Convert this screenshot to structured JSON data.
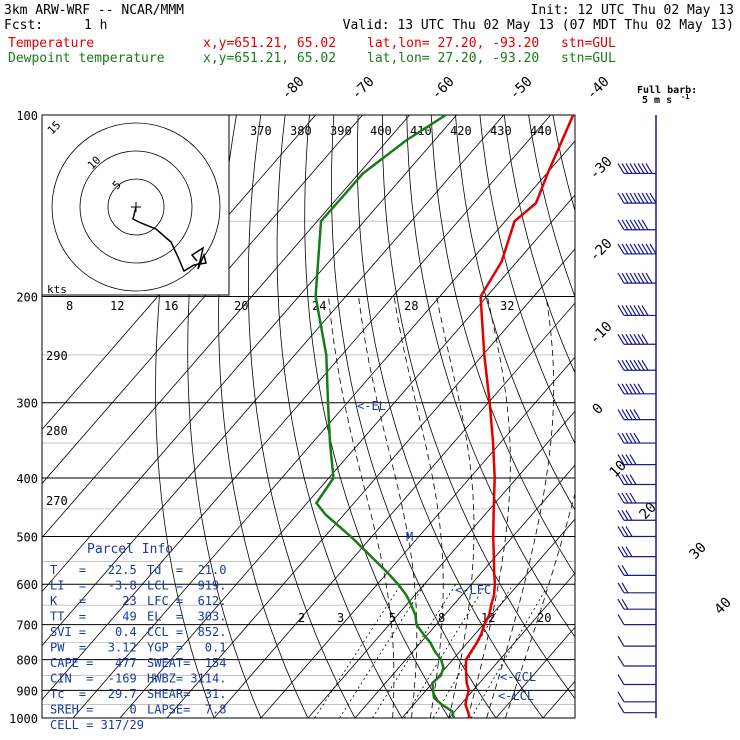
{
  "header": {
    "model": "3km ARW-WRF -- NCAR/MMM",
    "init": "Init: 12 UTC Thu 02 May 13",
    "fcst_label": "Fcst:",
    "fcst_value": "1 h",
    "valid": "Valid: 13 UTC Thu 02 May 13 (07 MDT Thu 02 May 13)",
    "temp_line": {
      "name": "Temperature",
      "xy": "x,y=651.21, 65.02",
      "latlon": "lat,lon= 27.20, -93.20",
      "stn": "stn=GUL"
    },
    "dew_line": {
      "name": "Dewpoint temperature",
      "xy": "x,y=651.21, 65.02",
      "latlon": "lat,lon= 27.20, -93.20",
      "stn": "stn=GUL"
    }
  },
  "colors": {
    "temperature": "#e00000",
    "dewpoint": "#1a7a1a",
    "parcel_text": "#1a3a9c",
    "barbs": "#1a1a8c"
  },
  "parcel_info": {
    "title": "Parcel Info",
    "rows": [
      [
        "T   =   22.5",
        "Td  =  21.0"
      ],
      [
        "LI  =   -3.8",
        "LCL =  919."
      ],
      [
        "K   =     23",
        "LFC =  612."
      ],
      [
        "TT  =     49",
        "EL  =  303."
      ],
      [
        "SVI =    0.4",
        "CCL =  852."
      ],
      [
        "PW  =   3.12",
        "YGP =   0.1"
      ],
      [
        "CAPE =   477",
        "SWEAT=  154"
      ],
      [
        "CIN  =  -169",
        "HWBZ= 3114."
      ],
      [
        "Tc  =   29.7",
        "SHEAR=  31."
      ],
      [
        "SREH =     0",
        "LAPSE=  7.8"
      ],
      [
        "CELL = 317/29",
        ""
      ]
    ]
  },
  "hodograph": {
    "ring_labels": [
      "5",
      "10",
      "15"
    ],
    "units_label": "kts",
    "points": [
      [
        0,
        0
      ],
      [
        -0.3,
        -1.2
      ],
      [
        0.5,
        -1.6
      ],
      [
        2.0,
        -2.2
      ],
      [
        3.5,
        -3.5
      ],
      [
        4.2,
        -5.0
      ],
      [
        4.8,
        -6.4
      ],
      [
        5.8,
        -5.8
      ],
      [
        7.0,
        -5.6
      ],
      [
        6.8,
        -4.8
      ],
      [
        6.2,
        -6.2
      ],
      [
        6.5,
        -5.0
      ],
      [
        6.7,
        -4.1
      ],
      [
        5.6,
        -4.8
      ],
      [
        6.1,
        -5.4
      ]
    ]
  },
  "barb_legend": {
    "title": "Full barb:",
    "value": "5 m s",
    "sup": "-1"
  },
  "level_markers": [
    "<-EL",
    "<-LFC",
    "<-CCL",
    "<-LCL",
    "M"
  ],
  "chart_data": {
    "type": "line",
    "title": "",
    "ylabel": "",
    "xlabel": "",
    "y_scale": "log",
    "ylim": [
      1000,
      100
    ],
    "xlim": [
      -40,
      40
    ],
    "pressure_ticks": [
      100,
      200,
      300,
      400,
      500,
      600,
      700,
      800,
      900,
      1000
    ],
    "isotherm_labels": [
      "-80",
      "-70",
      "-60",
      "-50",
      "-40",
      "-30",
      "-20",
      "-10",
      "0",
      "10",
      "20",
      "30",
      "40"
    ],
    "dry_adiabat_labels": [
      "370",
      "380",
      "390",
      "400",
      "410",
      "420",
      "430",
      "440"
    ],
    "moist_adiabat_labels": [
      "8",
      "12",
      "16",
      "20",
      "24",
      "28",
      "32"
    ],
    "side_theta_labels": [
      "290",
      "280",
      "270"
    ],
    "mixing_ratio_labels": [
      "2",
      "3",
      "5",
      "8",
      "12",
      "20"
    ],
    "series": [
      {
        "name": "Temperature",
        "points": [
          [
            1000,
            24.4
          ],
          [
            975,
            22.8
          ],
          [
            950,
            21.0
          ],
          [
            925,
            20.0
          ],
          [
            900,
            19.1
          ],
          [
            875,
            17.3
          ],
          [
            850,
            15.8
          ],
          [
            825,
            14.3
          ],
          [
            800,
            12.8
          ],
          [
            775,
            12.4
          ],
          [
            750,
            12.0
          ],
          [
            725,
            11.3
          ],
          [
            700,
            10.2
          ],
          [
            675,
            9.5
          ],
          [
            650,
            8.1
          ],
          [
            625,
            6.8
          ],
          [
            600,
            5.0
          ],
          [
            575,
            2.8
          ],
          [
            550,
            0.6
          ],
          [
            500,
            -4.2
          ],
          [
            450,
            -9.2
          ],
          [
            400,
            -14.7
          ],
          [
            350,
            -21.5
          ],
          [
            300,
            -29.7
          ],
          [
            250,
            -39.7
          ],
          [
            200,
            -51.3
          ],
          [
            175,
            -53.3
          ],
          [
            150,
            -58.0
          ],
          [
            140,
            -56.8
          ],
          [
            125,
            -59.8
          ],
          [
            100,
            -65.2
          ]
        ]
      },
      {
        "name": "Dewpoint temperature",
        "points": [
          [
            1000,
            21.0
          ],
          [
            975,
            19.5
          ],
          [
            950,
            16.0
          ],
          [
            925,
            13.0
          ],
          [
            900,
            11.5
          ],
          [
            875,
            10.0
          ],
          [
            850,
            10.4
          ],
          [
            825,
            9.5
          ],
          [
            800,
            7.5
          ],
          [
            775,
            4.6
          ],
          [
            750,
            2.1
          ],
          [
            725,
            -1.1
          ],
          [
            700,
            -4.2
          ],
          [
            675,
            -6.2
          ],
          [
            650,
            -8.9
          ],
          [
            625,
            -11.9
          ],
          [
            600,
            -15.6
          ],
          [
            575,
            -19.8
          ],
          [
            550,
            -24.5
          ],
          [
            500,
            -34.5
          ],
          [
            460,
            -43.9
          ],
          [
            440,
            -48.0
          ],
          [
            400,
            -49.0
          ],
          [
            350,
            -56.2
          ],
          [
            300,
            -64.1
          ],
          [
            250,
            -73.3
          ],
          [
            200,
            -86.4
          ],
          [
            150,
            -99.2
          ],
          [
            125,
            -99.1
          ],
          [
            110,
            -96.0
          ],
          [
            100,
            -92.3
          ]
        ]
      }
    ],
    "wind_barbs": [
      {
        "p": 125,
        "spd": 40
      },
      {
        "p": 140,
        "spd": 45
      },
      {
        "p": 155,
        "spd": 35
      },
      {
        "p": 170,
        "spd": 45
      },
      {
        "p": 190,
        "spd": 40
      },
      {
        "p": 215,
        "spd": 35
      },
      {
        "p": 240,
        "spd": 35
      },
      {
        "p": 265,
        "spd": 35
      },
      {
        "p": 290,
        "spd": 30
      },
      {
        "p": 320,
        "spd": 25
      },
      {
        "p": 350,
        "spd": 25
      },
      {
        "p": 380,
        "spd": 20
      },
      {
        "p": 410,
        "spd": 20
      },
      {
        "p": 440,
        "spd": 20
      },
      {
        "p": 470,
        "spd": 15
      },
      {
        "p": 500,
        "spd": 15
      },
      {
        "p": 540,
        "spd": 15
      },
      {
        "p": 580,
        "spd": 10
      },
      {
        "p": 620,
        "spd": 10
      },
      {
        "p": 660,
        "spd": 10
      },
      {
        "p": 700,
        "spd": 5
      },
      {
        "p": 760,
        "spd": 5
      },
      {
        "p": 820,
        "spd": 5
      },
      {
        "p": 880,
        "spd": 5
      },
      {
        "p": 940,
        "spd": 5
      },
      {
        "p": 980,
        "spd": 5
      }
    ]
  }
}
